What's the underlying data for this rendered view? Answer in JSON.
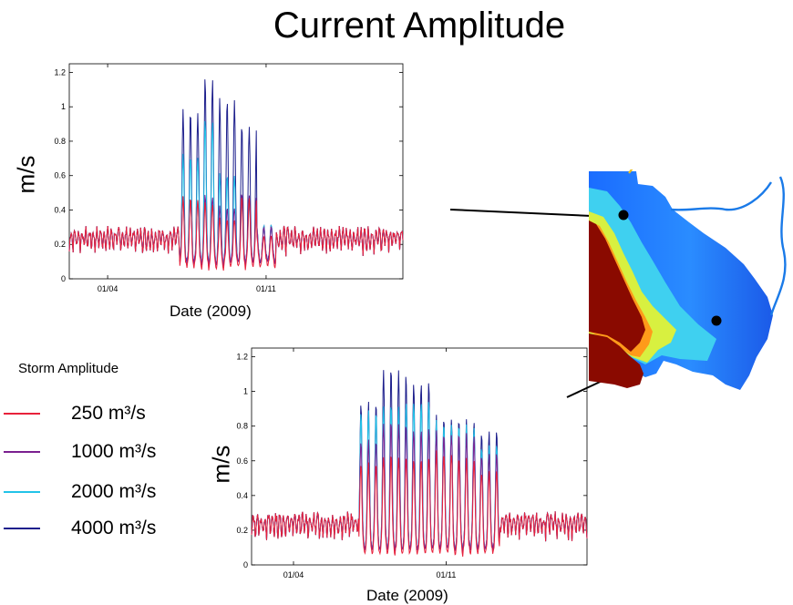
{
  "title": "Current Amplitude",
  "legend": {
    "title": "Storm Amplitude",
    "items": [
      {
        "label": "250 m³/s",
        "color": "#e8213b"
      },
      {
        "label": "1000 m³/s",
        "color": "#7b2090"
      },
      {
        "label": "2000 m³/s",
        "color": "#22c3e8"
      },
      {
        "label": "4000 m³/s",
        "color": "#1d1f8c"
      }
    ]
  },
  "chart_data": [
    {
      "type": "line",
      "xlabel": "Date (2009)",
      "ylabel": "m/s",
      "ylim": [
        0,
        1.25
      ],
      "yticks": [
        "0",
        "0.2",
        "0.4",
        "0.6",
        "0.8",
        "1",
        "1.2"
      ],
      "xticks": [
        "01/04",
        "01/11"
      ],
      "grid": false,
      "series": [
        {
          "name": "250 m³/s",
          "color": "#e8213b",
          "peaks": [
            0.43,
            0.4,
            0.3,
            0.43,
            0.2
          ]
        },
        {
          "name": "1000 m³/s",
          "color": "#7b2090",
          "peaks": [
            0.38,
            0.4,
            0.33,
            0.4,
            0.22
          ]
        },
        {
          "name": "2000 m³/s",
          "color": "#22c3e8",
          "peaks": [
            0.63,
            0.84,
            0.52,
            0.35,
            0.23
          ]
        },
        {
          "name": "4000 m³/s",
          "color": "#1d1f8c",
          "peaks": [
            0.89,
            1.09,
            0.96,
            0.8,
            0.23
          ]
        }
      ]
    },
    {
      "type": "line",
      "xlabel": "Date (2009)",
      "ylabel": "m/s",
      "ylim": [
        0,
        1.25
      ],
      "yticks": [
        "0",
        "0.2",
        "0.4",
        "0.6",
        "0.8",
        "1",
        "1.2"
      ],
      "xticks": [
        "01/04",
        "01/11"
      ],
      "grid": false,
      "series": [
        {
          "name": "250 m³/s",
          "color": "#e8213b",
          "peaks": [
            0.55,
            0.6,
            0.58,
            0.62,
            0.58,
            0.5
          ]
        },
        {
          "name": "1000 m³/s",
          "color": "#7b2090",
          "peaks": [
            0.63,
            0.74,
            0.7,
            0.68,
            0.67,
            0.55
          ]
        },
        {
          "name": "2000 m³/s",
          "color": "#22c3e8",
          "peaks": [
            0.8,
            0.84,
            0.86,
            0.74,
            0.72,
            0.6
          ]
        },
        {
          "name": "4000 m³/s",
          "color": "#1d1f8c",
          "peaks": [
            0.85,
            1.05,
            0.97,
            0.77,
            0.75,
            0.68
          ]
        }
      ]
    }
  ]
}
